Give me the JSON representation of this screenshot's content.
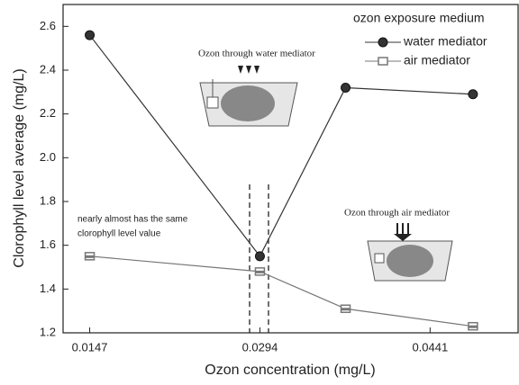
{
  "chart_data": {
    "type": "line",
    "x_label": "Ozon concentration (mg/L)",
    "y_label": "Clorophyll level average (mg/L)",
    "x": [
      0.0147,
      0.0294,
      0.0368,
      0.0478
    ],
    "series": [
      {
        "name": "water mediator",
        "color": "#333333",
        "marker": "circle",
        "values": [
          2.56,
          1.55,
          2.32,
          2.29
        ]
      },
      {
        "name": "air mediator",
        "color": "#777777",
        "marker": "square",
        "values": [
          1.55,
          1.48,
          1.31,
          1.23
        ]
      }
    ],
    "xlim": [
      0.0124,
      0.0517
    ],
    "xticks": [
      0.0147,
      0.0294,
      0.0441
    ],
    "ylim": [
      1.2,
      2.7
    ],
    "yticks": [
      1.2,
      1.4,
      1.6,
      1.8,
      {
        "value": 2,
        "label": "2.0"
      },
      2.2,
      2.4,
      2.6
    ],
    "legend_title": "ozon exposure medium",
    "legend": "upper right",
    "annotations": [
      {
        "text": [
          "nearly almost has the same",
          "clorophyll level value"
        ]
      },
      {
        "text": [
          "Ozon through water mediator"
        ]
      },
      {
        "text": [
          "Ozon through air mediator"
        ]
      }
    ]
  }
}
